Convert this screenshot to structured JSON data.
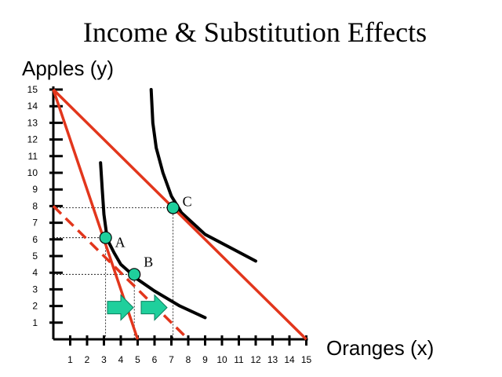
{
  "title": "Income & Substitution Effects",
  "y_axis_label": "Apples (y)",
  "x_axis_label": "Oranges (x)",
  "colors": {
    "budget_line": "#e2361c",
    "indifference_curve": "#000000",
    "point_fill": "#1fcf9c",
    "arrow_fill": "#1fcf9c",
    "guide_line": "#000000"
  },
  "chart_data": {
    "type": "line",
    "xlim": [
      0,
      15
    ],
    "ylim": [
      0,
      15
    ],
    "x_ticks": [
      "1",
      "2",
      "3",
      "4",
      "5",
      "6",
      "7",
      "8",
      "9",
      "10",
      "11",
      "12",
      "13",
      "14",
      "15"
    ],
    "y_ticks": [
      "1",
      "2",
      "3",
      "4",
      "5",
      "6",
      "7",
      "8",
      "9",
      "10",
      "11",
      "12",
      "13",
      "14",
      "15"
    ],
    "budget_lines": [
      {
        "style": "solid",
        "from": [
          0,
          15
        ],
        "to": [
          5,
          0
        ]
      },
      {
        "style": "solid",
        "from": [
          0,
          15
        ],
        "to": [
          15,
          0
        ]
      },
      {
        "style": "dashed",
        "from": [
          0,
          8
        ],
        "to": [
          8,
          0
        ]
      }
    ],
    "indifference_curves": [
      {
        "points": [
          [
            2.8,
            10.6
          ],
          [
            2.9,
            9
          ],
          [
            3,
            7.5
          ],
          [
            3.2,
            6
          ],
          [
            3.6,
            5.2
          ],
          [
            4,
            4.5
          ],
          [
            5,
            3.6
          ],
          [
            6,
            2.9
          ],
          [
            7.5,
            2
          ],
          [
            9,
            1.3
          ]
        ]
      },
      {
        "points": [
          [
            5.8,
            15
          ],
          [
            5.9,
            13
          ],
          [
            6.1,
            11.5
          ],
          [
            6.5,
            10
          ],
          [
            7,
            8.6
          ],
          [
            7.6,
            7.6
          ],
          [
            9,
            6.3
          ],
          [
            10.5,
            5.5
          ],
          [
            12,
            4.7
          ]
        ]
      }
    ],
    "points": [
      {
        "label": "A",
        "x": 3.1,
        "y": 6.1
      },
      {
        "label": "B",
        "x": 4.8,
        "y": 3.9
      },
      {
        "label": "C",
        "x": 7.1,
        "y": 7.9
      }
    ],
    "arrows": [
      {
        "x": 4,
        "y": 2
      },
      {
        "x": 6,
        "y": 2
      }
    ],
    "grid": false
  }
}
